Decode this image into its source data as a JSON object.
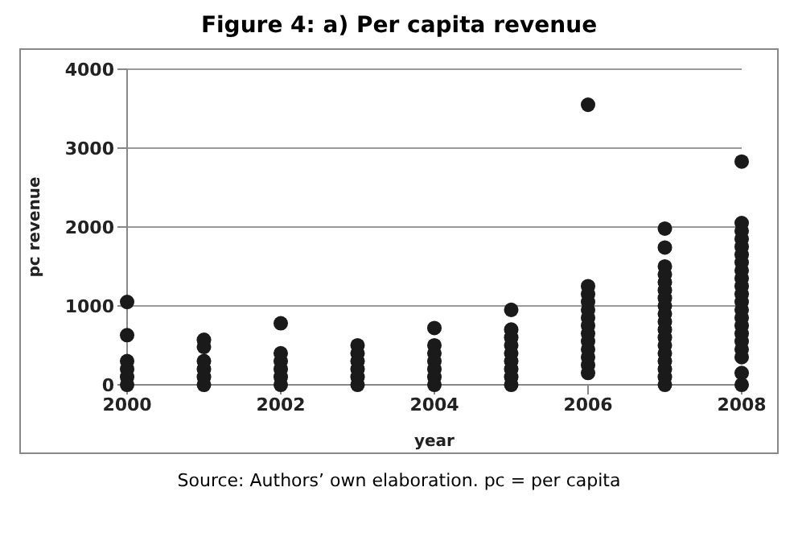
{
  "chart_data": {
    "type": "scatter",
    "title": "Figure  4: a) Per capita revenue",
    "xlabel": "year",
    "ylabel": "pc revenue",
    "annotations": [
      "Source: Authors’ own elaboration. pc = per capita"
    ],
    "x": [
      2000,
      2000,
      2000,
      2000,
      2000,
      2000,
      2001,
      2001,
      2001,
      2001,
      2001,
      2001,
      2002,
      2002,
      2002,
      2002,
      2002,
      2002,
      2003,
      2003,
      2003,
      2003,
      2003,
      2003,
      2004,
      2004,
      2004,
      2004,
      2004,
      2004,
      2004,
      2005,
      2005,
      2005,
      2005,
      2005,
      2005,
      2005,
      2005,
      2005,
      2006,
      2006,
      2006,
      2006,
      2006,
      2006,
      2006,
      2006,
      2006,
      2006,
      2006,
      2006,
      2006,
      2007,
      2007,
      2007,
      2007,
      2007,
      2007,
      2007,
      2007,
      2007,
      2007,
      2007,
      2007,
      2007,
      2007,
      2007,
      2007,
      2007,
      2007,
      2008,
      2008,
      2008,
      2008,
      2008,
      2008,
      2008,
      2008,
      2008,
      2008,
      2008,
      2008,
      2008,
      2008,
      2008,
      2008,
      2008,
      2008,
      2008,
      2008,
      2008
    ],
    "series": [
      {
        "color": "#1a1a1a",
        "values": [
          1050,
          630,
          300,
          200,
          100,
          0,
          570,
          480,
          300,
          200,
          100,
          0,
          780,
          400,
          300,
          200,
          100,
          0,
          500,
          400,
          300,
          200,
          100,
          0,
          720,
          500,
          400,
          300,
          200,
          100,
          0,
          950,
          700,
          600,
          500,
          400,
          300,
          200,
          100,
          0,
          3550,
          1250,
          1150,
          1050,
          950,
          850,
          750,
          650,
          550,
          450,
          350,
          250,
          150,
          1980,
          1740,
          1500,
          1400,
          1300,
          1200,
          1100,
          1000,
          900,
          800,
          700,
          600,
          500,
          400,
          300,
          200,
          100,
          0,
          2830,
          2050,
          1950,
          1850,
          1750,
          1650,
          1550,
          1450,
          1350,
          1250,
          1150,
          1050,
          950,
          850,
          750,
          650,
          550,
          450,
          350,
          150,
          0
        ]
      }
    ],
    "xlim": [
      2000,
      2008
    ],
    "xticks": [
      2000,
      2002,
      2004,
      2006,
      2008
    ],
    "ylim": [
      0,
      4000
    ],
    "yticks": [
      0,
      1000,
      2000,
      3000,
      4000
    ],
    "grid": "y",
    "marker": "circle"
  }
}
